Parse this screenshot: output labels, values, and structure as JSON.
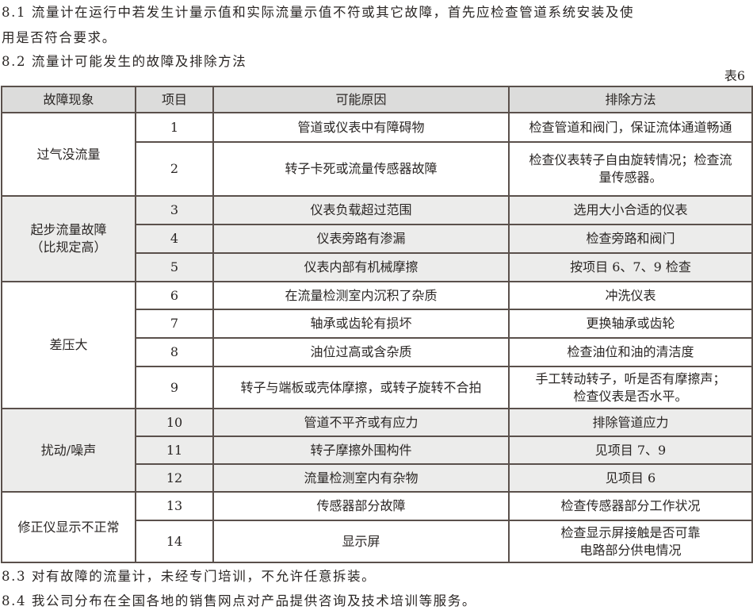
{
  "paragraphs": {
    "p1_line1": "8.1 流量计在运行中若发生计量示值和实际流量示值不符或其它故障，首先应检查管道系统安装及使",
    "p1_line2": "用是否符合要求。",
    "p2": "8.2 流量计可能发生的故障及排除方法",
    "p3": "8.3 对有故障的流量计，未经专门培训，不允许任意拆装。",
    "p4": "8.4 我公司分布在全国各地的销售网点对产品提供咨询及技术培训等服务。"
  },
  "table_label": "表6",
  "table": {
    "headers": [
      "故障现象",
      "项目",
      "可能原因",
      "排除方法"
    ],
    "groups": [
      {
        "symptom": [
          "过气没流量"
        ],
        "shaded": false,
        "rows": [
          {
            "item": "1",
            "cause": [
              "管道或仪表中有障碍物"
            ],
            "fix": [
              "检查管道和阀门，保证流体通道畅通"
            ]
          },
          {
            "item": "2",
            "cause": [
              "转子卡死或流量传感器故障"
            ],
            "fix": [
              "检查仪表转子自由旋转情况；检查流",
              "量传感器。"
            ]
          }
        ]
      },
      {
        "symptom": [
          "起步流量故障",
          "（比规定高）"
        ],
        "shaded": true,
        "rows": [
          {
            "item": "3",
            "cause": [
              "仪表负载超过范围"
            ],
            "fix": [
              "选用大小合适的仪表"
            ]
          },
          {
            "item": "4",
            "cause": [
              "仪表旁路有渗漏"
            ],
            "fix": [
              "检查旁路和阀门"
            ]
          },
          {
            "item": "5",
            "cause": [
              "仪表内部有机械摩擦"
            ],
            "fix": [
              "按项目 6、7、9 检查"
            ]
          }
        ]
      },
      {
        "symptom": [
          "差压大"
        ],
        "shaded": false,
        "rows": [
          {
            "item": "6",
            "cause": [
              "在流量检测室内沉积了杂质"
            ],
            "fix": [
              "冲洗仪表"
            ]
          },
          {
            "item": "7",
            "cause": [
              "轴承或齿轮有损坏"
            ],
            "fix": [
              "更换轴承或齿轮"
            ]
          },
          {
            "item": "8",
            "cause": [
              "油位过高或含杂质"
            ],
            "fix": [
              "检查油位和油的清洁度"
            ]
          },
          {
            "item": "9",
            "cause": [
              "转子与端板或壳体摩擦，或转子旋转不合拍"
            ],
            "fix": [
              "手工转动转子，听是否有摩擦声；",
              "检查仪表是否水平。"
            ]
          }
        ]
      },
      {
        "symptom": [
          "扰动/噪声"
        ],
        "shaded": true,
        "rows": [
          {
            "item": "10",
            "cause": [
              "管道不平齐或有应力"
            ],
            "fix": [
              "排除管道应力"
            ]
          },
          {
            "item": "11",
            "cause": [
              "转子摩擦外围构件"
            ],
            "fix": [
              "见项目 7、9"
            ]
          },
          {
            "item": "12",
            "cause": [
              "流量检测室内有杂物"
            ],
            "fix": [
              "见项目 6"
            ]
          }
        ]
      },
      {
        "symptom": [
          "修正仪显示不正常"
        ],
        "shaded": false,
        "rows": [
          {
            "item": "13",
            "cause": [
              "传感器部分故障"
            ],
            "fix": [
              "检查传感器部分工作状况"
            ]
          },
          {
            "item": "14",
            "cause": [
              "显示屏"
            ],
            "fix": [
              "检查显示屏接触是否可靠",
              "电路部分供电情况"
            ]
          }
        ]
      }
    ]
  },
  "colors": {
    "header_bg": "#dcdcdb",
    "shaded_bg": "#ececeb",
    "border": "#5a504b"
  }
}
